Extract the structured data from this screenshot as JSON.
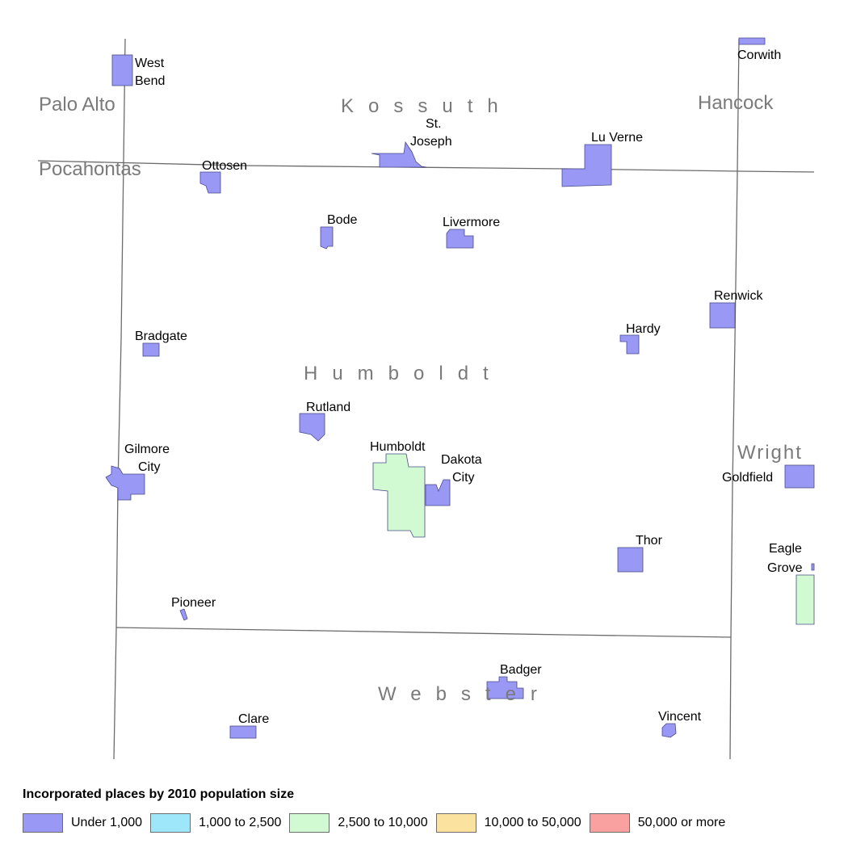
{
  "counties": {
    "palo_alto": "Palo Alto",
    "kossuth": "Kossuth",
    "hancock": "Hancock",
    "pocahontas": "Pocahontas",
    "humboldt": "Humboldt",
    "wright": "Wright",
    "webster": "Webster"
  },
  "places": {
    "west_bend": [
      "West",
      "Bend"
    ],
    "corwith": "Corwith",
    "st_joseph": [
      "St.",
      "Joseph"
    ],
    "lu_verne": "Lu Verne",
    "ottosen": "Ottosen",
    "bode": "Bode",
    "livermore": "Livermore",
    "renwick": "Renwick",
    "hardy": "Hardy",
    "bradgate": "Bradgate",
    "rutland": "Rutland",
    "humboldt": "Humboldt",
    "dakota_city": [
      "Dakota",
      "City"
    ],
    "gilmore_city": [
      "Gilmore",
      "City"
    ],
    "goldfield": "Goldfield",
    "eagle_grove": [
      "Eagle",
      "Grove"
    ],
    "thor": "Thor",
    "pioneer": "Pioneer",
    "badger": "Badger",
    "clare": "Clare",
    "vincent": "Vincent"
  },
  "legend": {
    "title": "Incorporated places by 2010 population size",
    "items": [
      {
        "label": "Under 1,000",
        "color": "#9999f5"
      },
      {
        "label": "1,000 to 2,500",
        "color": "#9ee6fa"
      },
      {
        "label": "2,500 to 10,000",
        "color": "#d2fad2"
      },
      {
        "label": "10,000 to 50,000",
        "color": "#fbe29e"
      },
      {
        "label": "50,000 or more",
        "color": "#f9a0a0"
      }
    ]
  },
  "colors": {
    "under_1000": "#9999f5",
    "from_2500_to_10000": "#d2fad2",
    "boundary": "#6b6b6b",
    "county_label": "#7a7a7a"
  }
}
